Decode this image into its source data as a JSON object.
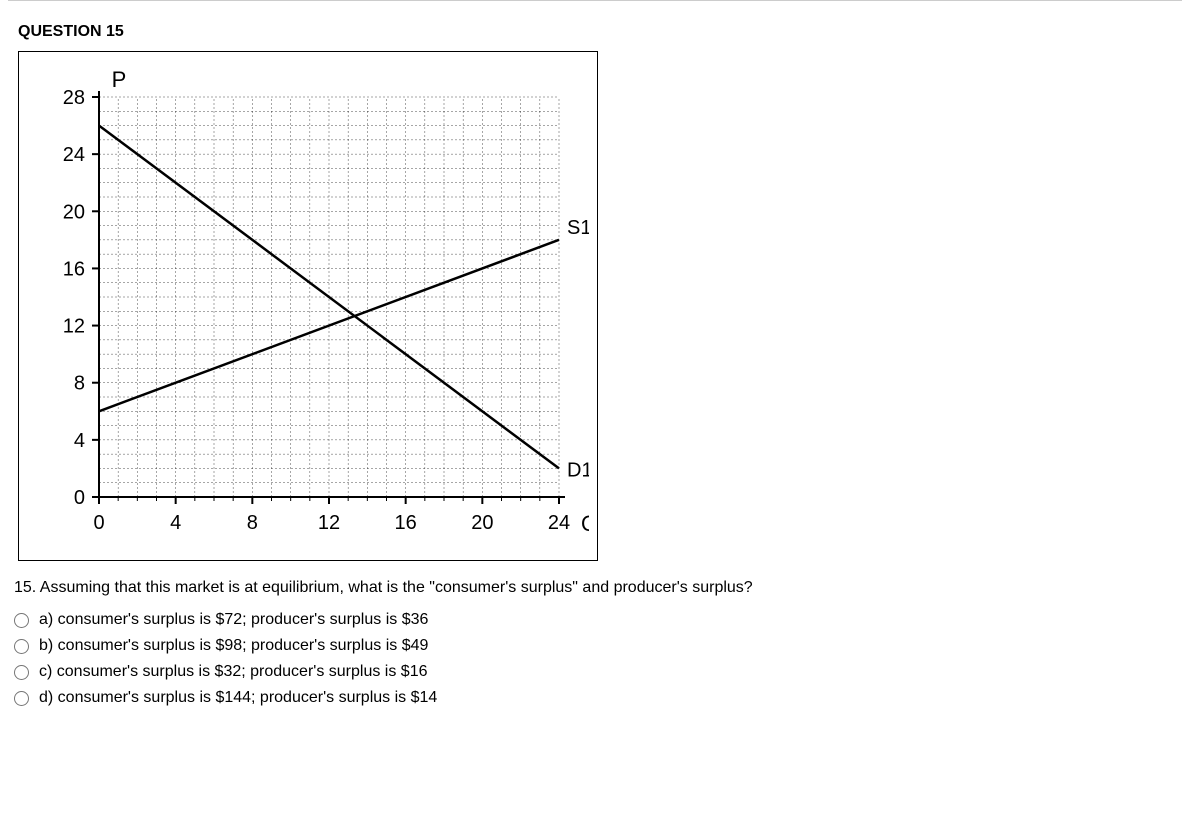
{
  "header": {
    "title": "QUESTION 15"
  },
  "chart": {
    "type": "line",
    "y_axis_label": "P",
    "x_axis_label": "Q",
    "x_ticks": [
      0,
      4,
      8,
      12,
      16,
      20,
      24
    ],
    "y_ticks": [
      0,
      4,
      8,
      12,
      16,
      20,
      24,
      28
    ],
    "xlim": [
      0,
      24
    ],
    "ylim": [
      0,
      28
    ],
    "minor_x_step": 1,
    "minor_y_step": 1,
    "grid_color": "#000000",
    "grid_dash": "2,2",
    "axis_color": "#000000",
    "tick_fontsize": 20,
    "axis_label_fontsize": 22,
    "curve_label_fontsize": 20,
    "curves": [
      {
        "label": "S1",
        "points": [
          [
            0,
            6
          ],
          [
            24,
            18
          ]
        ],
        "color": "#000000",
        "width": 2.5
      },
      {
        "label": "D1",
        "points": [
          [
            0,
            26
          ],
          [
            24,
            2
          ]
        ],
        "color": "#000000",
        "width": 2.5
      }
    ],
    "background_color": "#ffffff"
  },
  "question": {
    "prompt": "15. Assuming that this market is at equilibrium, what is the \"consumer's surplus\" and producer's surplus?",
    "options": [
      {
        "key": "a",
        "text": "a) consumer's surplus is $72; producer's surplus is $36"
      },
      {
        "key": "b",
        "text": "b) consumer's surplus is $98; producer's surplus is $49"
      },
      {
        "key": "c",
        "text": "c) consumer's surplus is $32; producer's surplus is $16"
      },
      {
        "key": "d",
        "text": "d) consumer's surplus is $144; producer's surplus is $14"
      }
    ]
  }
}
